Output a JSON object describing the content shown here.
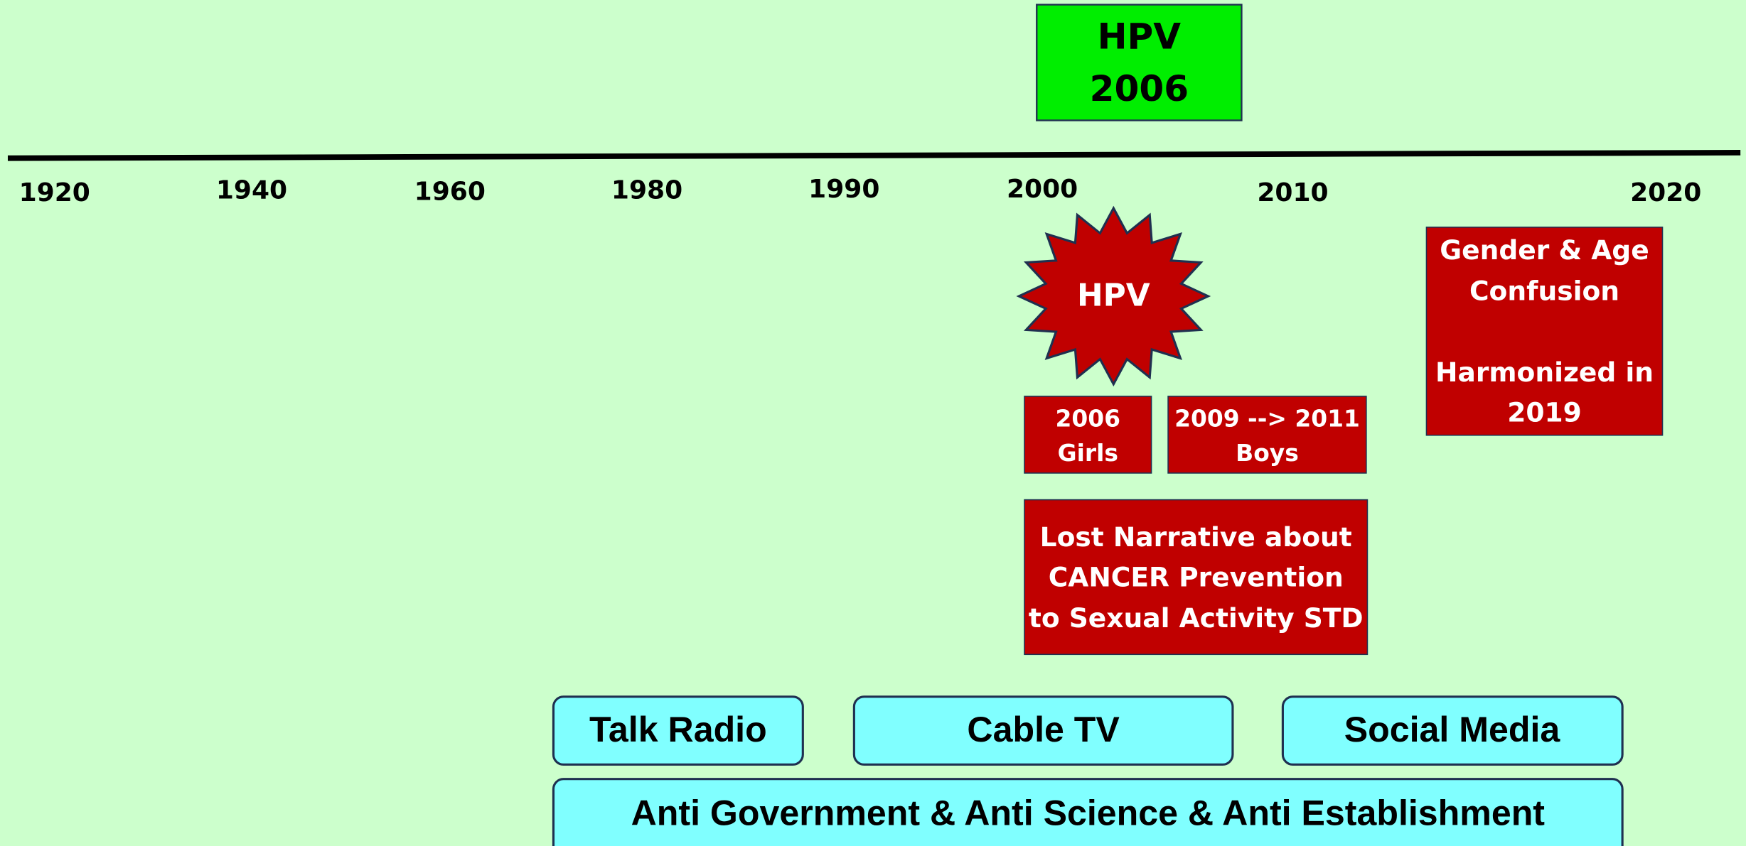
{
  "top_box": {
    "lines": [
      "HPV",
      "2006"
    ]
  },
  "timeline": {
    "years": [
      "1920",
      "1940",
      "1960",
      "1980",
      "1990",
      "2000",
      "2010",
      "2020"
    ]
  },
  "starburst": {
    "label": "HPV"
  },
  "girls_box": {
    "lines": [
      "2006",
      "Girls"
    ]
  },
  "boys_box": {
    "lines": [
      "2009 --> 2011",
      "Boys"
    ]
  },
  "gender_box": {
    "paragraphs": [
      [
        "Gender & Age",
        "Confusion"
      ],
      [
        "Harmonized in",
        "2019"
      ]
    ]
  },
  "narrative_box": {
    "lines": [
      "Lost Narrative about",
      "CANCER Prevention",
      "to Sexual Activity STD"
    ]
  },
  "media": {
    "items": [
      "Talk Radio",
      "Cable TV",
      "Social Media"
    ],
    "footer": "Anti Government & Anti Science & Anti Establishment"
  }
}
